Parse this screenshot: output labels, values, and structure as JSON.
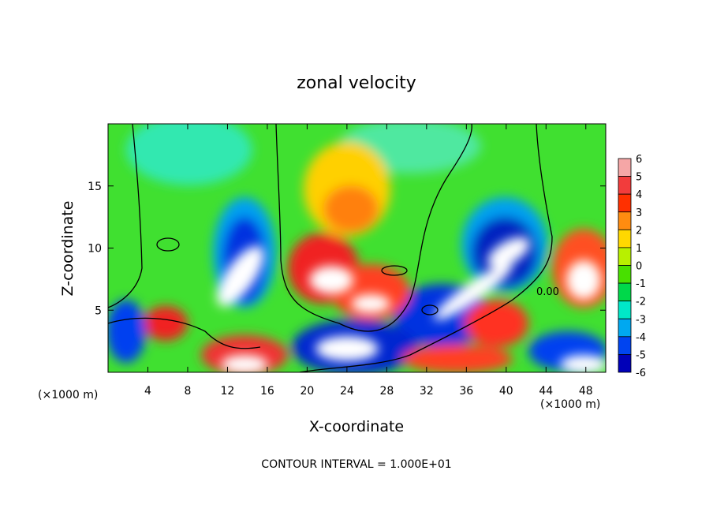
{
  "chart_data": {
    "type": "heatmap",
    "title": "zonal velocity",
    "x_label": "X-coordinate",
    "y_label": "Z-coordinate",
    "x_unit": "(×1000 m)",
    "y_unit": "(×1000 m)",
    "xlim": [
      0,
      50
    ],
    "xticks": [
      4,
      8,
      12,
      16,
      20,
      24,
      28,
      32,
      36,
      40,
      44,
      48
    ],
    "ylim": [
      0,
      20
    ],
    "yticks": [
      5,
      10,
      15
    ],
    "contour_label": "0.00",
    "footer": "CONTOUR INTERVAL = 1.000E+01",
    "colorbar": {
      "levels": [
        6,
        5,
        4,
        3,
        2,
        1,
        0,
        -1,
        -2,
        -3,
        -4,
        -5,
        -6
      ],
      "colors": [
        "#f5a6a6",
        "#f23c3c",
        "#ff3000",
        "#ff8c10",
        "#ffd800",
        "#b8f000",
        "#48e000",
        "#00d84a",
        "#00e8c8",
        "#00a8f0",
        "#0044f0",
        "#0000b8",
        "#6a0096"
      ]
    }
  }
}
